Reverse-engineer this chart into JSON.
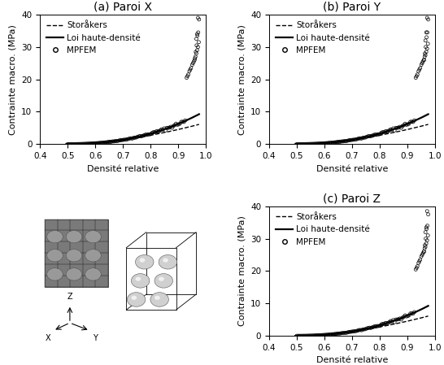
{
  "title_a": "(a) Paroi X",
  "title_b": "(b) Paroi Y",
  "title_c": "(c) Paroi Z",
  "xlabel": "Densité relative",
  "ylabel": "Contrainte macro. (MPa)",
  "xlim": [
    0.4,
    1.0
  ],
  "ylim": [
    0,
    40
  ],
  "xticks": [
    0.4,
    0.5,
    0.6,
    0.7,
    0.8,
    0.9,
    1.0
  ],
  "yticks": [
    0,
    10,
    20,
    30,
    40
  ],
  "legend_storakers": "Storåkers",
  "legend_lhd": "Loi haute-densité",
  "legend_mpfem": "MPFEM",
  "background_color": "#ffffff",
  "title_fontsize": 10,
  "label_fontsize": 8,
  "tick_fontsize": 7.5,
  "legend_fontsize": 7.5
}
